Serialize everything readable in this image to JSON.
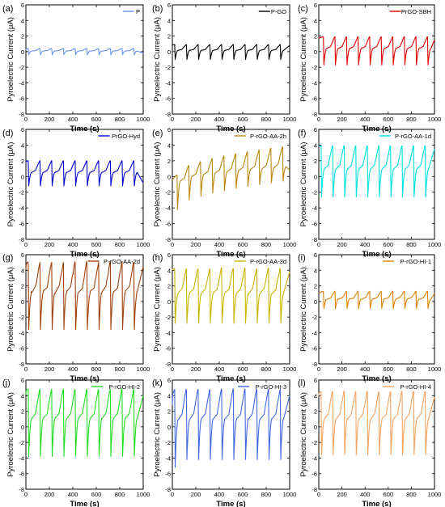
{
  "panel_layout": {
    "columns": [
      {
        "label_x": 3,
        "plot_left": 32,
        "plot_right": 177
      },
      {
        "label_x": 188,
        "plot_left": 213,
        "plot_right": 358
      },
      {
        "label_x": 368,
        "plot_left": 394,
        "plot_right": 537
      }
    ],
    "rows": [
      {
        "label_y": 14,
        "plot_top": 6,
        "plot_bottom": 141
      },
      {
        "label_y": 168,
        "plot_top": 160,
        "plot_bottom": 296
      },
      {
        "label_y": 322,
        "plot_top": 315,
        "plot_bottom": 450
      },
      {
        "label_y": 477,
        "plot_top": 470,
        "plot_bottom": 605
      }
    ]
  },
  "chart_data": [
    {
      "type": "line",
      "panel": "(a)",
      "title": "",
      "xlabel": "Time (s)",
      "ylabel": "Pyroelectric Current (μA)",
      "xlim": [
        0,
        1000
      ],
      "ylim": [
        -8,
        6
      ],
      "xticks": [
        0,
        200,
        400,
        600,
        800,
        1000
      ],
      "yticks": [
        -8,
        -6,
        -4,
        -2,
        0,
        2,
        4,
        6
      ],
      "legend": "top-right",
      "series": [
        {
          "name": "P",
          "color": "#6495ED",
          "period": 100,
          "phase": 20,
          "high": 0.4,
          "low": -0.4,
          "start": 0.2,
          "end": -0.2
        }
      ]
    },
    {
      "type": "line",
      "panel": "(b)",
      "title": "",
      "xlabel": "Time (s)",
      "ylabel": "Pyroelectric Current (μA)",
      "xlim": [
        0,
        1000
      ],
      "ylim": [
        -8,
        6
      ],
      "xticks": [
        0,
        200,
        400,
        600,
        800,
        1000
      ],
      "yticks": [
        -8,
        -6,
        -4,
        -2,
        0,
        2,
        4,
        6
      ],
      "legend": "top-right",
      "series": [
        {
          "name": "P-GO",
          "color": "#000000",
          "period": 100,
          "phase": 20,
          "high": 0.9,
          "low": -1.0,
          "start": 0.8,
          "end": 0.8
        }
      ]
    },
    {
      "type": "line",
      "panel": "(c)",
      "title": "",
      "xlabel": "Time (s)",
      "ylabel": "Pyroelectric Current (μA)",
      "xlim": [
        0,
        1000
      ],
      "ylim": [
        -8,
        6
      ],
      "xticks": [
        0,
        200,
        400,
        600,
        800,
        1000
      ],
      "yticks": [
        -8,
        -6,
        -4,
        -2,
        0,
        2,
        4,
        6
      ],
      "legend": "top-right",
      "series": [
        {
          "name": "PrGO-SBH",
          "color": "#E00000",
          "period": 100,
          "phase": 40,
          "high": 1.9,
          "low": -1.7,
          "start": 1.7,
          "end": 1.5
        }
      ]
    },
    {
      "type": "line",
      "panel": "(d)",
      "title": "",
      "xlabel": "Time (s)",
      "ylabel": "Pyroelectric Current (μA)",
      "xlim": [
        0,
        1000
      ],
      "ylim": [
        -8,
        6
      ],
      "xticks": [
        0,
        200,
        400,
        600,
        800,
        1000
      ],
      "yticks": [
        -8,
        -6,
        -4,
        -2,
        0,
        2,
        4,
        6
      ],
      "legend": "top-right",
      "series": [
        {
          "name": "PrGO-Hyd",
          "color": "#0000CD",
          "period": 100,
          "phase": 20,
          "high": 2.0,
          "low": -1.2,
          "start": 1.8,
          "end": -0.8
        }
      ]
    },
    {
      "type": "line",
      "panel": "(e)",
      "title": "",
      "xlabel": "Time (s)",
      "ylabel": "Pyroelectric Current (μA)",
      "xlim": [
        0,
        1000
      ],
      "ylim": [
        -8,
        6
      ],
      "xticks": [
        0,
        200,
        400,
        600,
        800,
        1000
      ],
      "yticks": [
        -8,
        -6,
        -4,
        -2,
        0,
        2,
        4,
        6
      ],
      "legend": "top-right",
      "series": [
        {
          "name": "P-rGO-AA-2h",
          "color": "#B8860B",
          "period": 100,
          "phase": 40,
          "high": 3.8,
          "low": -0.6,
          "start": -0.5,
          "end": 0.8,
          "ramp": true,
          "high_start": 0.2,
          "low_start": -4.2
        }
      ]
    },
    {
      "type": "line",
      "panel": "(f)",
      "title": "",
      "xlabel": "Time (s)",
      "ylabel": "Pyroelectric Current (μA)",
      "xlim": [
        0,
        1000
      ],
      "ylim": [
        -8,
        6
      ],
      "xticks": [
        0,
        200,
        400,
        600,
        800,
        1000
      ],
      "yticks": [
        -8,
        -6,
        -4,
        -2,
        0,
        2,
        4,
        6
      ],
      "legend": "top-right",
      "series": [
        {
          "name": "P-rGO-AA-1d",
          "color": "#00E0E0",
          "period": 100,
          "phase": 20,
          "high": 3.9,
          "low": -2.6,
          "start": 3.8,
          "end": 3.5
        }
      ]
    },
    {
      "type": "line",
      "panel": "(g)",
      "title": "",
      "xlabel": "Time (s)",
      "ylabel": "Pyroelectric Current (μA)",
      "xlim": [
        0,
        1000
      ],
      "ylim": [
        -8,
        6
      ],
      "xticks": [
        0,
        200,
        400,
        600,
        800,
        1000
      ],
      "yticks": [
        -8,
        -6,
        -4,
        -2,
        0,
        2,
        4,
        6
      ],
      "legend": "top-right",
      "series": [
        {
          "name": "P-rGO-AA-2d",
          "color": "#A0400A",
          "period": 100,
          "phase": 20,
          "high": 5.0,
          "low": -3.6,
          "start": 4.2,
          "end": 4.5,
          "noise": 0.35
        }
      ]
    },
    {
      "type": "line",
      "panel": "(h)",
      "title": "",
      "xlabel": "Time (s)",
      "ylabel": "Pyroelectric Current (μA)",
      "xlim": [
        0,
        1000
      ],
      "ylim": [
        -8,
        6
      ],
      "xticks": [
        0,
        200,
        400,
        600,
        800,
        1000
      ],
      "yticks": [
        -8,
        -6,
        -4,
        -2,
        0,
        2,
        4,
        6
      ],
      "legend": "top-right",
      "series": [
        {
          "name": "P-rGO-AA-3d",
          "color": "#C8B400",
          "period": 100,
          "phase": 20,
          "high": 4.2,
          "low": -2.8,
          "start": 4.0,
          "end": 3.8,
          "noise": 0.2
        }
      ]
    },
    {
      "type": "line",
      "panel": "(i)",
      "title": "",
      "xlabel": "Time (s)",
      "ylabel": "Pyroelectric Current (μA)",
      "xlim": [
        0,
        1000
      ],
      "ylim": [
        -8,
        6
      ],
      "xticks": [
        0,
        200,
        400,
        600,
        800,
        1000
      ],
      "yticks": [
        -8,
        -6,
        -4,
        -2,
        0,
        2,
        4,
        6
      ],
      "legend": "top-right",
      "series": [
        {
          "name": "P-rGO-HI-1",
          "color": "#E08000",
          "period": 100,
          "phase": 40,
          "high": 1.3,
          "low": -0.9,
          "start": 1.1,
          "end": 1.0,
          "noise": 0.1
        }
      ]
    },
    {
      "type": "line",
      "panel": "(j)",
      "title": "",
      "xlabel": "Time (s)",
      "ylabel": "Pyroelectric Current (μA)",
      "xlim": [
        0,
        1000
      ],
      "ylim": [
        -8,
        6
      ],
      "xticks": [
        0,
        200,
        400,
        600,
        800,
        1000
      ],
      "yticks": [
        -8,
        -6,
        -4,
        -2,
        0,
        2,
        4,
        6
      ],
      "legend": "top-right",
      "series": [
        {
          "name": "P-rGO-HI-2",
          "color": "#22DD22",
          "period": 100,
          "phase": 20,
          "high": 4.8,
          "low": -3.8,
          "start": 4.2,
          "end": 4.0,
          "noise": 0.15
        }
      ]
    },
    {
      "type": "line",
      "panel": "(k)",
      "title": "",
      "xlabel": "Time (s)",
      "ylabel": "Pyroelectric Current (μA)",
      "xlim": [
        0,
        1000
      ],
      "ylim": [
        -8,
        6
      ],
      "xticks": [
        0,
        200,
        400,
        600,
        800,
        1000
      ],
      "yticks": [
        -8,
        -6,
        -4,
        -2,
        0,
        2,
        4,
        6
      ],
      "legend": "top-right",
      "series": [
        {
          "name": "P-rGO-HI-3",
          "color": "#4169E1",
          "period": 100,
          "phase": 20,
          "high": 4.8,
          "low": -4.2,
          "start": 2.8,
          "end": 4.0,
          "noise": 0.15,
          "first_low": -5.2
        }
      ]
    },
    {
      "type": "line",
      "panel": "(l)",
      "title": "",
      "xlabel": "Time (s)",
      "ylabel": "Pyroelectric Current (μA)",
      "xlim": [
        0,
        1000
      ],
      "ylim": [
        -8,
        6
      ],
      "xticks": [
        0,
        200,
        400,
        600,
        800,
        1000
      ],
      "yticks": [
        -8,
        -6,
        -4,
        -2,
        0,
        2,
        4,
        6
      ],
      "legend": "top-right",
      "series": [
        {
          "name": "P-rGO-HI-4",
          "color": "#F4A460",
          "period": 100,
          "phase": 20,
          "high": 4.5,
          "low": -3.6,
          "start": 4.0,
          "end": 3.8,
          "noise": 0.2
        }
      ]
    }
  ]
}
